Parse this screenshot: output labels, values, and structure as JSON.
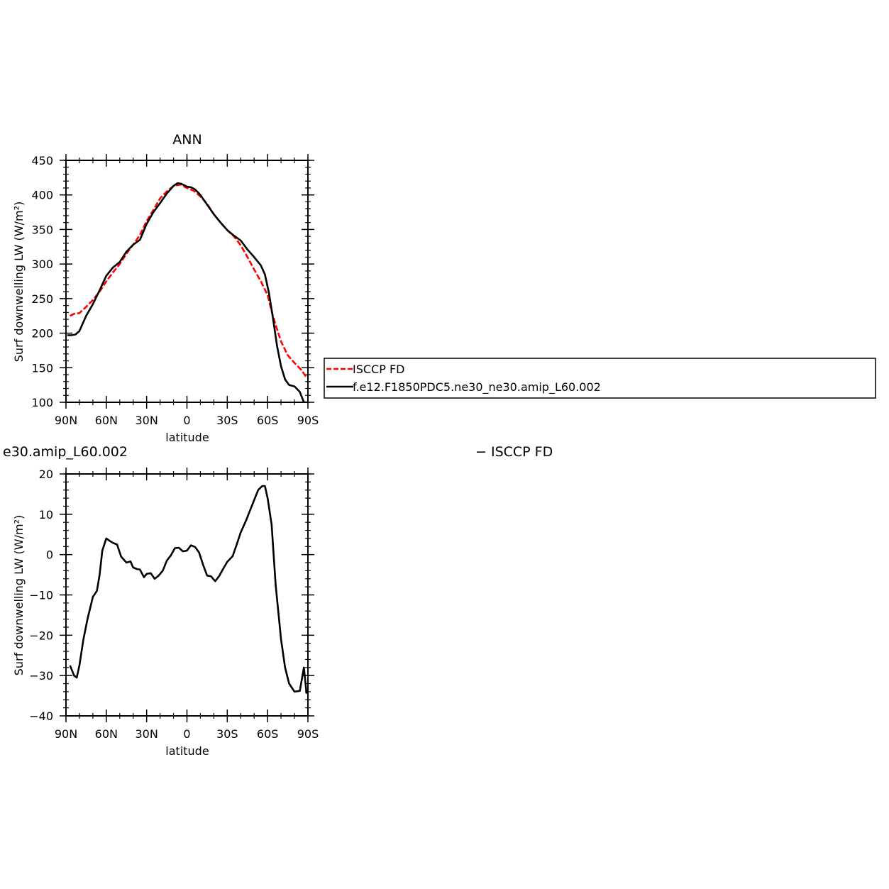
{
  "chart_data": [
    {
      "type": "line",
      "title": "ANN",
      "xlabel": "latitude",
      "ylabel": "Surf downwelling LW (W/m²)",
      "xlim": [
        90,
        -90
      ],
      "ylim": [
        100,
        450
      ],
      "x_ticks": [
        90,
        60,
        30,
        0,
        -30,
        -60,
        -90
      ],
      "x_tick_labels": [
        "90N",
        "60N",
        "30N",
        "0",
        "30S",
        "60S",
        "90S"
      ],
      "y_ticks": [
        100,
        150,
        200,
        250,
        300,
        350,
        400,
        450
      ],
      "y_tick_labels": [
        "100",
        "150",
        "200",
        "250",
        "300",
        "350",
        "400",
        "450"
      ],
      "legend": {
        "placement": "right",
        "entries": [
          {
            "label": "ISCCP FD",
            "color": "#ff0000",
            "style": "dashed"
          },
          {
            "label": "f.e12.F1850PDC5.ne30_ne30.amip_L60.002",
            "color": "#000000",
            "style": "solid"
          }
        ]
      },
      "series": [
        {
          "color": "#ff0000",
          "style": "dashed",
          "x": [
            87,
            84,
            80,
            75,
            70,
            65,
            60,
            55,
            50,
            45,
            40,
            35,
            30,
            25,
            20,
            15,
            10,
            5,
            0,
            -5,
            -10,
            -15,
            -20,
            -25,
            -30,
            -35,
            -40,
            -45,
            -50,
            -55,
            -60,
            -63,
            -66,
            -70,
            -75,
            -80,
            -85,
            -89
          ],
          "y": [
            225,
            228,
            229,
            238,
            248,
            260,
            275,
            288,
            300,
            315,
            328,
            342,
            362,
            378,
            395,
            405,
            413,
            415,
            410,
            406,
            398,
            387,
            372,
            360,
            349,
            340,
            327,
            310,
            292,
            275,
            255,
            232,
            212,
            188,
            168,
            157,
            147,
            136
          ]
        },
        {
          "color": "#000000",
          "style": "solid",
          "x": [
            89,
            86,
            83,
            80,
            75,
            70,
            65,
            60,
            55,
            50,
            45,
            40,
            35,
            30,
            25,
            20,
            15,
            10,
            7,
            4,
            0,
            -3,
            -6,
            -10,
            -15,
            -20,
            -25,
            -30,
            -35,
            -40,
            -45,
            -50,
            -55,
            -58,
            -61,
            -64,
            -67,
            -70,
            -73,
            -76,
            -80,
            -84,
            -87,
            -90
          ],
          "y": [
            197,
            197,
            198,
            203,
            225,
            242,
            262,
            283,
            295,
            303,
            318,
            328,
            335,
            358,
            375,
            388,
            402,
            413,
            417,
            416,
            412,
            411,
            408,
            400,
            386,
            372,
            360,
            349,
            341,
            334,
            321,
            310,
            298,
            285,
            258,
            222,
            182,
            152,
            133,
            125,
            123,
            115,
            100,
            100
          ]
        }
      ]
    },
    {
      "type": "line",
      "title": "e30.amip_L60.002",
      "title2": "− ISCCP FD",
      "xlabel": "latitude",
      "ylabel": "Surf downwelling LW (W/m²)",
      "xlim": [
        90,
        -90
      ],
      "ylim": [
        -40,
        20
      ],
      "x_ticks": [
        90,
        60,
        30,
        0,
        -30,
        -60,
        -90
      ],
      "x_tick_labels": [
        "90N",
        "60N",
        "30N",
        "0",
        "30S",
        "60S",
        "90S"
      ],
      "y_ticks": [
        -40,
        -30,
        -20,
        -10,
        0,
        10,
        20
      ],
      "y_tick_labels": [
        "−40",
        "−30",
        "−20",
        "−10",
        "0",
        "10",
        "20"
      ],
      "series": [
        {
          "color": "#000000",
          "style": "solid",
          "x": [
            87,
            84,
            82,
            80,
            77,
            74,
            70,
            67,
            65,
            63,
            60,
            57,
            55,
            52,
            49,
            45,
            42,
            40,
            37,
            35,
            32,
            30,
            27,
            24,
            21,
            18,
            15,
            12,
            9,
            6,
            3,
            0,
            -3,
            -6,
            -9,
            -12,
            -15,
            -18,
            -21,
            -24,
            -27,
            -30,
            -34,
            -37,
            -40,
            -44,
            -47,
            -50,
            -53,
            -56,
            -58,
            -60,
            -63,
            -66,
            -70,
            -73,
            -76,
            -80,
            -84,
            -87,
            -89
          ],
          "y": [
            -27.5,
            -30,
            -30.5,
            -27.5,
            -21,
            -16,
            -10.5,
            -9,
            -5,
            1,
            4,
            3.3,
            2.9,
            2.5,
            -0.5,
            -2,
            -1.7,
            -3.2,
            -3.6,
            -3.7,
            -5.6,
            -4.8,
            -4.6,
            -6,
            -5.2,
            -4,
            -1.5,
            -0.2,
            1.6,
            1.7,
            0.8,
            1,
            2.3,
            1.9,
            0.5,
            -2.5,
            -5.2,
            -5.4,
            -6.6,
            -5.3,
            -3.5,
            -1.8,
            -0.4,
            2.5,
            5.5,
            8.5,
            11,
            13.5,
            16,
            17,
            17,
            14,
            7.5,
            -7.5,
            -21,
            -28,
            -32,
            -34,
            -33.8,
            -28,
            -34.5
          ]
        }
      ]
    }
  ]
}
